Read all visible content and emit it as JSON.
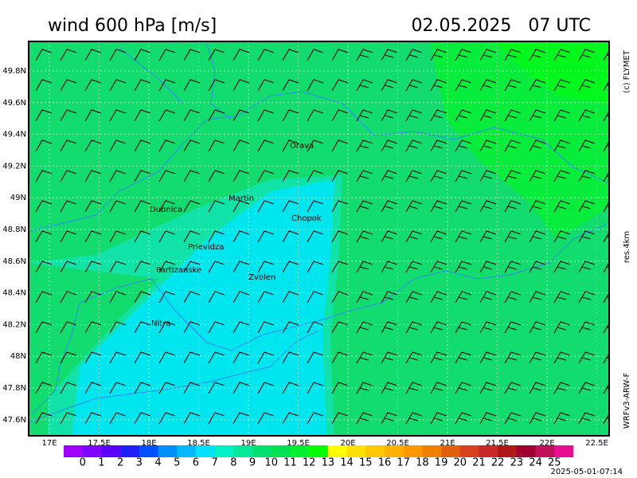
{
  "header": {
    "title": "wind 600 hPa [m/s]",
    "date": "02.05.2025   07 UTC"
  },
  "side": {
    "copyright": "(c) FLYMET",
    "resolution": "res.4km",
    "model": "WRFv3-ARW-F"
  },
  "map": {
    "lat_labels": [
      "49.8N",
      "49.6N",
      "49.4N",
      "49.2N",
      "49N",
      "48.8N",
      "48.6N",
      "48.4N",
      "48.2N",
      "48N",
      "47.8N",
      "47.6N"
    ],
    "lon_labels": [
      "17E",
      "17.5E",
      "18E",
      "18.5E",
      "19E",
      "19.5E",
      "20E",
      "20.5E",
      "21E",
      "21.5E",
      "22E",
      "22.5E"
    ],
    "places": [
      {
        "name": "Orava"
      },
      {
        "name": "Martin"
      },
      {
        "name": "Dubnica"
      },
      {
        "name": "Chopok"
      },
      {
        "name": "Prievidza"
      },
      {
        "name": "Partizanske"
      },
      {
        "name": "Zvolen"
      },
      {
        "name": "Nitra"
      }
    ]
  },
  "colorbar": {
    "labels": [
      "0",
      "1",
      "2",
      "3",
      "4",
      "5",
      "6",
      "7",
      "8",
      "9",
      "10",
      "11",
      "12",
      "13",
      "14",
      "15",
      "16",
      "17",
      "18",
      "19",
      "20",
      "21",
      "22",
      "23",
      "24",
      "25"
    ],
    "colors": [
      "#a000ff",
      "#8000ff",
      "#5a00ff",
      "#2020ff",
      "#0050ff",
      "#0090ff",
      "#00b8ff",
      "#00e0ff",
      "#00f0c8",
      "#00e898",
      "#00e070",
      "#00e050",
      "#00f030",
      "#00ff00",
      "#ffff00",
      "#ffe000",
      "#ffc800",
      "#ffb000",
      "#ff9800",
      "#f08000",
      "#e06010",
      "#d84020",
      "#c82828",
      "#b01818",
      "#a00030",
      "#c0105c",
      "#e81090"
    ]
  },
  "footer": {
    "timestamp": "2025-05-01-07:14"
  }
}
